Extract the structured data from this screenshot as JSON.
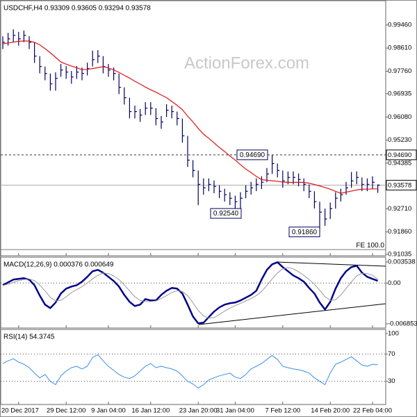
{
  "chart_data": [
    {
      "type": "ohlc",
      "title": "USDCHF,H4 0.93309 0.93605 0.93294 0.93578",
      "watermark": "ActionForex.com",
      "color": "#00005e",
      "categories": [
        null,
        null,
        null,
        "20 Dec 2017",
        null,
        null,
        null,
        null,
        null,
        null,
        null,
        null,
        "29 Dec 12:00",
        null,
        null,
        null,
        null,
        null,
        null,
        null,
        "9 Jan 04:00",
        null,
        null,
        null,
        null,
        null,
        null,
        null,
        "16 Jan 12:00",
        null,
        null,
        null,
        null,
        null,
        null,
        null,
        null,
        "23 Jan 20:00",
        null,
        null,
        null,
        null,
        null,
        null,
        "31 Jan 04:00",
        null,
        null,
        null,
        null,
        null,
        null,
        null,
        null,
        "7 Feb 12:00",
        null,
        null,
        null,
        null,
        null,
        null,
        null,
        null,
        "14 Feb 20:00",
        null,
        null,
        null,
        null,
        null,
        null,
        null,
        "22 Feb 04:00",
        null
      ],
      "high": [
        0.99044,
        0.99171,
        0.99298,
        0.99205,
        0.99258,
        0.99044,
        0.98824,
        0.98315,
        0.97933,
        0.97678,
        0.9772,
        0.98026,
        0.97949,
        0.97771,
        0.97949,
        0.97898,
        0.98077,
        0.98518,
        0.98535,
        0.98315,
        0.98026,
        0.97898,
        0.97678,
        0.9717,
        0.96788,
        0.96499,
        0.96371,
        0.96626,
        0.96626,
        0.96406,
        0.96117,
        0.9655,
        0.96499,
        0.96279,
        0.96024,
        0.95388,
        0.94497,
        0.94115,
        0.93826,
        0.93826,
        0.9375,
        0.93572,
        0.93445,
        0.93317,
        0.9319,
        0.93317,
        0.93572,
        0.93699,
        0.93826,
        0.93903,
        0.94208,
        0.9469,
        0.94369,
        0.94115,
        0.94081,
        0.94081,
        0.94005,
        0.93826,
        0.93606,
        0.93352,
        0.9297,
        0.92716,
        0.92936,
        0.93317,
        0.93445,
        0.93699,
        0.94059,
        0.94081,
        0.93861,
        0.93826,
        0.93903,
        0.93605
      ],
      "low": [
        0.98574,
        0.98701,
        0.98828,
        0.98701,
        0.98828,
        0.98574,
        0.98065,
        0.97683,
        0.97428,
        0.97047,
        0.97047,
        0.97556,
        0.97479,
        0.97301,
        0.97479,
        0.97428,
        0.97607,
        0.97937,
        0.98065,
        0.97683,
        0.97556,
        0.97428,
        0.9692,
        0.96538,
        0.96029,
        0.96029,
        0.95901,
        0.96156,
        0.96156,
        0.95774,
        0.95647,
        0.9608,
        0.96029,
        0.95774,
        0.95138,
        0.94247,
        0.93865,
        0.92843,
        0.93229,
        0.93356,
        0.9328,
        0.93102,
        0.92975,
        0.92847,
        0.9272,
        0.9254,
        0.93097,
        0.93229,
        0.93356,
        0.93433,
        0.93683,
        0.93988,
        0.93865,
        0.93484,
        0.93611,
        0.93611,
        0.93535,
        0.93356,
        0.93102,
        0.9272,
        0.9186,
        0.92084,
        0.92334,
        0.92716,
        0.92975,
        0.93225,
        0.93479,
        0.93611,
        0.93356,
        0.93356,
        0.93433,
        0.93294
      ],
      "close": [
        0.98824,
        0.98951,
        0.99078,
        0.98951,
        0.99078,
        0.98824,
        0.98315,
        0.97933,
        0.97678,
        0.97297,
        0.975,
        0.97806,
        0.97729,
        0.97551,
        0.97729,
        0.97678,
        0.97857,
        0.98187,
        0.98315,
        0.97933,
        0.97806,
        0.97678,
        0.9717,
        0.96788,
        0.96279,
        0.96279,
        0.96151,
        0.96406,
        0.96406,
        0.96024,
        0.95897,
        0.9633,
        0.96279,
        0.96024,
        0.95388,
        0.94497,
        0.94115,
        0.93606,
        0.93479,
        0.93606,
        0.9353,
        0.93352,
        0.93225,
        0.93097,
        0.9297,
        0.93097,
        0.93352,
        0.93479,
        0.93606,
        0.93683,
        0.93988,
        0.94369,
        0.94115,
        0.93734,
        0.93861,
        0.93861,
        0.93785,
        0.93606,
        0.93352,
        0.9297,
        0.92588,
        0.92334,
        0.92716,
        0.93097,
        0.93225,
        0.93479,
        0.93734,
        0.93861,
        0.93606,
        0.93606,
        0.93683,
        0.93578
      ],
      "overlay": {
        "color": "#e01010",
        "values": [
          0.9877,
          0.988,
          0.9883,
          0.9886,
          0.9887,
          0.9887,
          0.9882,
          0.9873,
          0.9859,
          0.9844,
          0.9827,
          0.981,
          0.9802,
          0.9795,
          0.9789,
          0.9782,
          0.9783,
          0.9786,
          0.9789,
          0.9793,
          0.9788,
          0.9781,
          0.9772,
          0.9761,
          0.9751,
          0.9739,
          0.9729,
          0.9718,
          0.9708,
          0.9699,
          0.9689,
          0.9679,
          0.9665,
          0.9651,
          0.9635,
          0.9611,
          0.959,
          0.9566,
          0.9545,
          0.953,
          0.9513,
          0.9496,
          0.9481,
          0.9465,
          0.945,
          0.9433,
          0.9417,
          0.9404,
          0.939,
          0.9378,
          0.9376,
          0.9374,
          0.9372,
          0.9369,
          0.9368,
          0.9368,
          0.9368,
          0.9368,
          0.9365,
          0.936,
          0.9355,
          0.9349,
          0.9343,
          0.9335,
          0.9328,
          0.9332,
          0.9336,
          0.934,
          0.9343,
          0.9343,
          0.9344,
          0.9344
        ]
      },
      "ylim": [
        0.90985,
        1.00351
      ],
      "yticks": [
        {
          "value": 0.9946,
          "label": "0.99460"
        },
        {
          "value": 0.9861,
          "label": "0.98610"
        },
        {
          "value": 0.9776,
          "label": "0.97760"
        },
        {
          "value": 0.96935,
          "label": "0.96935"
        },
        {
          "value": 0.9608,
          "label": "0.96080"
        },
        {
          "value": 0.9523,
          "label": "0.95230"
        },
        {
          "value": 0.94385,
          "label": "0.94385"
        },
        {
          "value": 0.9271,
          "label": "0.92710"
        },
        {
          "value": 0.9186,
          "label": "0.91860"
        },
        {
          "value": 0.91035,
          "label": "0.91035"
        }
      ],
      "levels": [
        {
          "value": 0.9469,
          "label": "0.94690",
          "style": "dashed"
        },
        {
          "value": 0.93578,
          "label": "0.93578",
          "style": "solid"
        },
        {
          "value": 0.9121,
          "label": "FE 100.0",
          "style": "fib"
        }
      ],
      "annotations": [
        {
          "value": 0.9469,
          "label": "0.94690"
        },
        {
          "value": 0.9254,
          "label": "0.92540"
        },
        {
          "value": 0.9186,
          "label": "0.91860"
        }
      ]
    },
    {
      "type": "line",
      "title": "MACD(12,26,9) 0.000376 0.000649",
      "series": [
        {
          "color": "#00008b",
          "width": 2.5,
          "values": [
            -0.00035,
            0.00012,
            0.00058,
            0.0007,
            0.00082,
            0.00058,
            -0.00035,
            -0.0021,
            -0.00362,
            -0.0042,
            -0.00327,
            -0.00175,
            -0.00093,
            -0.00058,
            -0.00035,
            0.00023,
            0.00105,
            0.00199,
            0.00222,
            0.00175,
            0.00105,
            0.00035,
            -0.00058,
            -0.00199,
            -0.00315,
            -0.00385,
            -0.00362,
            -0.00269,
            -0.00292,
            -0.00292,
            -0.00199,
            -0.00128,
            -0.00082,
            -0.00093,
            -0.00175,
            -0.00362,
            -0.00561,
            -0.00677,
            -0.00666,
            -0.00572,
            -0.00479,
            -0.00409,
            -0.00362,
            -0.00339,
            -0.00327,
            -0.00292,
            -0.00245,
            -0.00199,
            -0.00128,
            0.00058,
            0.00222,
            0.00315,
            0.0035,
            0.00269,
            0.00199,
            0.00128,
            0.00082,
            0.00023,
            -0.00082,
            -0.00175,
            -0.00327,
            -0.00444,
            -0.00315,
            -0.00093,
            0.00082,
            0.00199,
            0.00269,
            0.00292,
            0.00175,
            0.00105,
            0.0007,
            0.000376
          ]
        },
        {
          "color": "#9a9a9a",
          "width": 1,
          "values": [
            -0.0004,
            -0.0002,
            0.0001,
            0.0004,
            0.0006,
            0.0007,
            0.0004,
            -0.0003,
            -0.0013,
            -0.0024,
            -0.003,
            -0.0029,
            -0.0023,
            -0.0016,
            -0.0011,
            -0.0006,
            0.0,
            0.0007,
            0.0013,
            0.0017,
            0.0016,
            0.0012,
            0.0006,
            -0.0003,
            -0.0013,
            -0.0023,
            -0.0029,
            -0.0031,
            -0.0031,
            -0.003,
            -0.0026,
            -0.0021,
            -0.0016,
            -0.0013,
            -0.0014,
            -0.0021,
            -0.0033,
            -0.0046,
            -0.0055,
            -0.0059,
            -0.0058,
            -0.0053,
            -0.0047,
            -0.0042,
            -0.0038,
            -0.0034,
            -0.003,
            -0.0026,
            -0.0021,
            -0.0014,
            -0.0004,
            0.0007,
            0.0017,
            0.0024,
            0.0026,
            0.0024,
            0.0019,
            0.0013,
            0.0006,
            -0.0002,
            -0.0012,
            -0.0023,
            -0.0029,
            -0.0028,
            -0.002,
            -0.0009,
            0.0002,
            0.0012,
            0.0016,
            0.0016,
            0.0013,
            0.000649
          ]
        }
      ],
      "ylim": [
        -0.007554,
        0.004356
      ],
      "yticks": [
        0.003538,
        {
          "value": 0,
          "label": "0.00"
        },
        -0.006853
      ],
      "levels": [
        {
          "value": 0
        }
      ]
    },
    {
      "type": "line",
      "title": "RSI(14) 54.3745",
      "series": [
        {
          "color": "#3a8ee6",
          "width": 1,
          "values": [
            56,
            60,
            63,
            58,
            55,
            50,
            42,
            35,
            40,
            30,
            25,
            38,
            45,
            50,
            52,
            48,
            52,
            65,
            69,
            60,
            52,
            46,
            40,
            36,
            34,
            38,
            45,
            52,
            56,
            50,
            52,
            50,
            48,
            45,
            38,
            30,
            26,
            20,
            25,
            32,
            35,
            38,
            40,
            42,
            36,
            34,
            40,
            48,
            52,
            56,
            62,
            68,
            62,
            52,
            50,
            48,
            47,
            45,
            42,
            35,
            30,
            25,
            42,
            55,
            58,
            62,
            66,
            60,
            54,
            52,
            55,
            54.3745
          ]
        }
      ],
      "ylim": [
        -4,
        106
      ],
      "yticks": [
        100,
        70,
        30
      ],
      "levels": [
        {
          "value": 70
        },
        {
          "value": 30
        }
      ]
    }
  ]
}
